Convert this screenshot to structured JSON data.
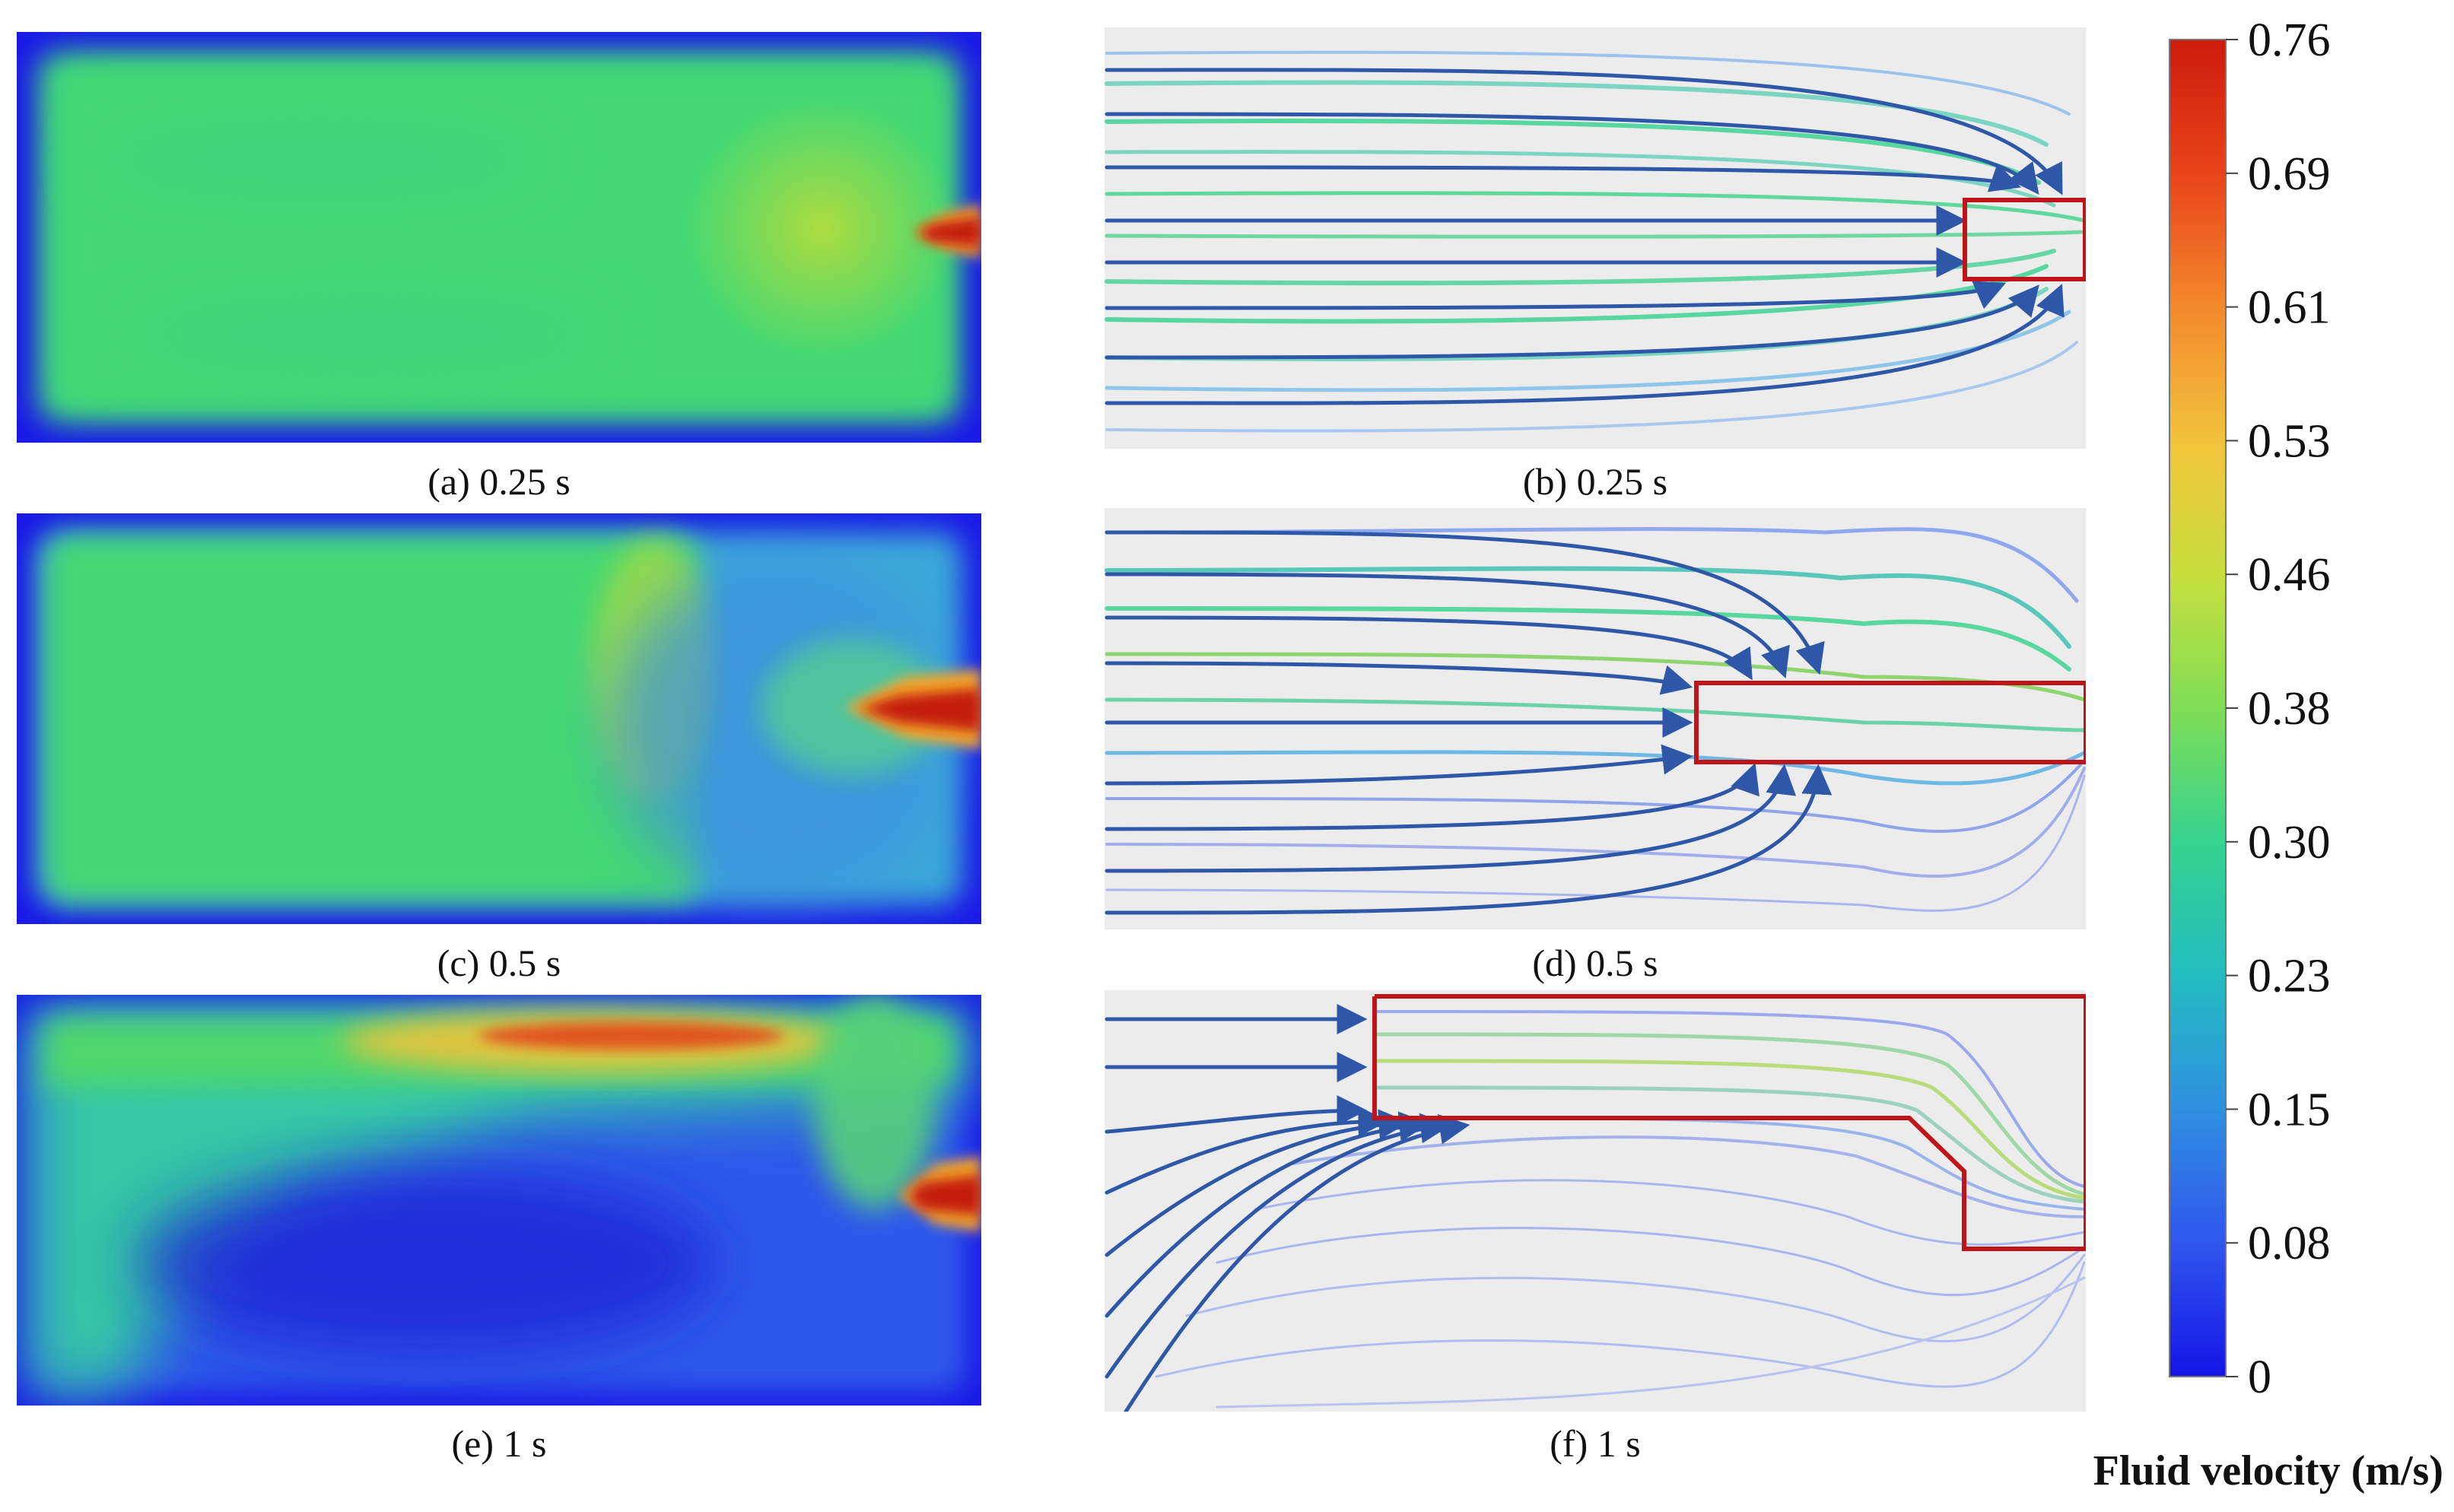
{
  "panels": [
    {
      "id": "a",
      "type": "contour",
      "caption": "(a) 0.25 s"
    },
    {
      "id": "b",
      "type": "streamline",
      "caption": "(b) 0.25 s"
    },
    {
      "id": "c",
      "type": "contour",
      "caption": "(c) 0.5 s"
    },
    {
      "id": "d",
      "type": "streamline",
      "caption": "(d) 0.5 s"
    },
    {
      "id": "e",
      "type": "contour",
      "caption": "(e) 1 s"
    },
    {
      "id": "f",
      "type": "streamline",
      "caption": "(f) 1 s"
    }
  ],
  "colorbar": {
    "title": "Fluid velocity (m/s)",
    "ticks": [
      "0.76",
      "0.69",
      "0.61",
      "0.53",
      "0.46",
      "0.38",
      "0.30",
      "0.23",
      "0.15",
      "0.08",
      "0"
    ],
    "colors": [
      "#cc1b0a",
      "#e9421a",
      "#f3892c",
      "#f2c23b",
      "#c8df3e",
      "#7fdd55",
      "#35d38f",
      "#23bcc0",
      "#2f8fe0",
      "#2f56ee",
      "#1515e6"
    ]
  },
  "colors": {
    "highlight": "#c0141b",
    "arrow": "#2f57a8",
    "panel_bg": "#ececec"
  }
}
